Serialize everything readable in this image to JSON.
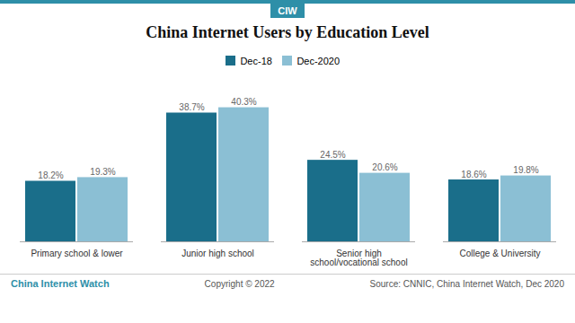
{
  "chart_data": {
    "type": "bar",
    "title": "China Internet Users by Education Level",
    "categories": [
      "Primary school & lower",
      "Junior high school",
      "Senior high\nschool/vocational school",
      "College & University"
    ],
    "series": [
      {
        "name": "Dec-18",
        "color": "#1a6e8a",
        "values": [
          18.2,
          38.7,
          24.5,
          18.6
        ],
        "value_labels": [
          "18.2%",
          "38.7%",
          "24.5%",
          "18.6%"
        ]
      },
      {
        "name": "Dec-2020",
        "color": "#8bbfd4",
        "values": [
          19.3,
          40.3,
          20.6,
          19.8
        ],
        "value_labels": [
          "19.3%",
          "40.3%",
          "20.6%",
          "19.8%"
        ]
      }
    ],
    "ylim": [
      0,
      48
    ],
    "tick_labels": "x",
    "data_labels": true,
    "legend": "top",
    "grid": false,
    "annotations": [
      "CIW",
      "China Internet Watch",
      "Copyright © 2022",
      "Source: CNNIC, China Internet Watch, Dec 2020"
    ]
  }
}
